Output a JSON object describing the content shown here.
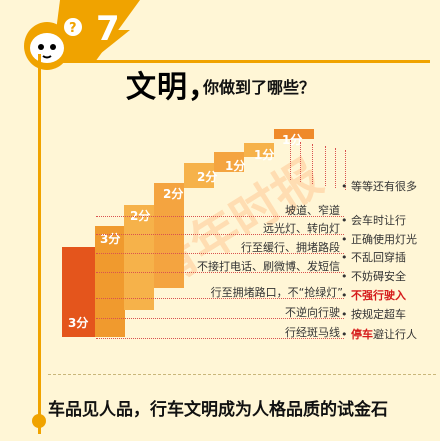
{
  "badge": {
    "number": "7"
  },
  "title": {
    "main": "文明，",
    "sub": "你做到了哪些？"
  },
  "scores": [
    "3分",
    "3分",
    "2分",
    "2分",
    "2分",
    "1分",
    "1分",
    "1分"
  ],
  "negatives": [
    "坡道、窄道",
    "远光灯、转向灯",
    "行至缓行、拥堵路段",
    "不接打电话、刷微博、发短信",
    "行至拥堵路口，不“抢绿灯”",
    "不逆向行驶",
    "行经斑马线"
  ],
  "positives": [
    {
      "text": "等等还有很多",
      "red": false
    },
    {
      "text": "会车时让行",
      "red": false
    },
    {
      "text": "正确使用灯光",
      "red": false
    },
    {
      "text": "不乱回穿插",
      "red": false
    },
    {
      "text": "不妨碍安全",
      "red": false
    },
    {
      "text": "不强行驶入",
      "red": true
    },
    {
      "text": "按规定超车",
      "red": false
    },
    {
      "text": "停车避让行人",
      "red": "mixed",
      "red_part": "停车",
      "rest": "避让行人"
    }
  ],
  "footer": {
    "text": "车品见人品，行车文明成为人格品质的试金石"
  },
  "watermark": {
    "text": "青年时报"
  },
  "colors": {
    "accent": "#f0a300",
    "bar_dark": "#e4551c",
    "bar_light": "#f6b24a",
    "red": "#d51b1b"
  },
  "icons": {
    "mascot": "question-mascot-icon",
    "bullet": "dot-bullet-icon"
  }
}
